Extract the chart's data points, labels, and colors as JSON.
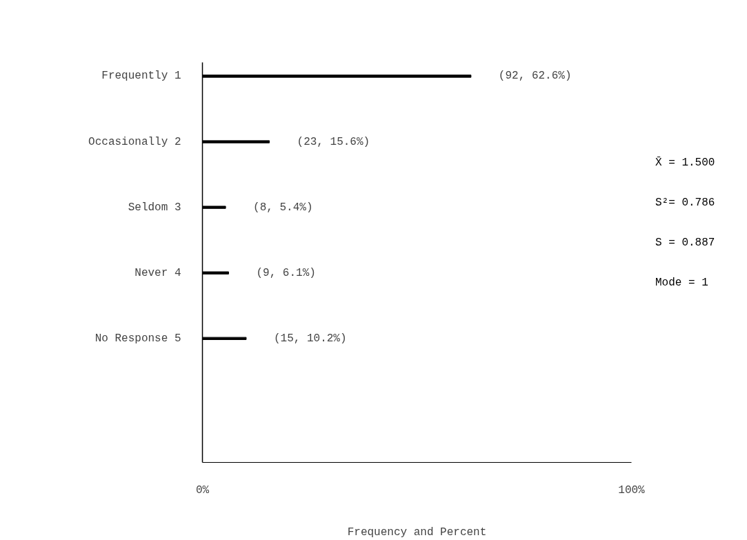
{
  "chart_data": {
    "type": "bar",
    "orientation": "horizontal",
    "categories": [
      "Frequently 1",
      "Occasionally 2",
      "Seldom 3",
      "Never 4",
      "No Response 5"
    ],
    "values": [
      62.6,
      15.6,
      5.4,
      6.1,
      10.2
    ],
    "value_labels": [
      "(92, 62.6%)",
      "(23, 15.6%)",
      "(8, 5.4%)",
      "(9, 6.1%)",
      "(15, 10.2%)"
    ],
    "color": "#000000",
    "xlim": [
      0,
      100
    ],
    "xticks": [
      {
        "value": 0,
        "label": "0%"
      },
      {
        "value": 100,
        "label": "100%"
      }
    ],
    "xlabel": "Frequency and Percent",
    "annotations": [
      "X̄ = 1.500",
      "S²= 0.786",
      "S = 0.887",
      "Mode = 1"
    ],
    "grid": false
  }
}
